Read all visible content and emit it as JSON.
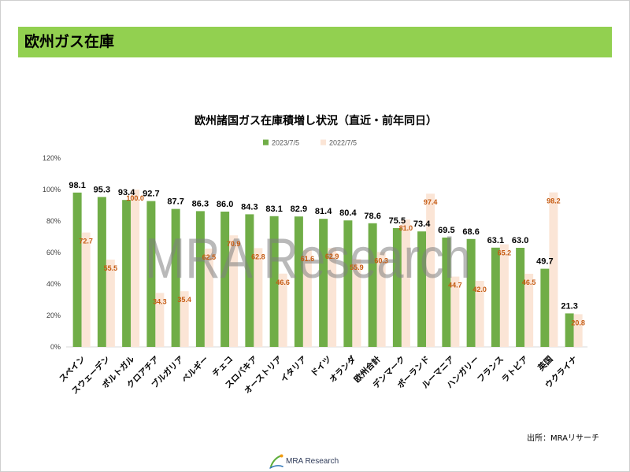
{
  "header": {
    "title": "欧州ガス在庫"
  },
  "chart_data": {
    "type": "bar",
    "title": "欧州諸国ガス在庫積増し状況（直近・前年同日）",
    "categories": [
      "スペイン",
      "スウェーデン",
      "ポルトガル",
      "クロアチア",
      "ブルガリア",
      "ベルギー",
      "チェコ",
      "スロバキア",
      "オーストリア",
      "イタリア",
      "ドイツ",
      "オランダ",
      "欧州合計",
      "デンマーク",
      "ポーランド",
      "ルーマニア",
      "ハンガリー",
      "フランス",
      "ラトビア",
      "英国",
      "ウクライナ"
    ],
    "series": [
      {
        "name": "2023/7/5",
        "color": "#70AD47",
        "label_color": "#000000",
        "values": [
          98.1,
          95.3,
          93.4,
          92.7,
          87.7,
          86.3,
          86.0,
          84.3,
          83.1,
          82.9,
          81.4,
          80.4,
          78.6,
          75.5,
          73.4,
          69.5,
          68.6,
          63.1,
          63.0,
          49.7,
          21.3
        ]
      },
      {
        "name": "2022/7/5",
        "color": "#FBE5D6",
        "label_color": "#C55A11",
        "values": [
          72.7,
          55.5,
          100.0,
          34.3,
          35.4,
          62.5,
          70.9,
          62.8,
          46.6,
          61.6,
          62.9,
          55.9,
          60.3,
          81.0,
          97.4,
          44.7,
          42.0,
          65.2,
          46.5,
          98.2,
          20.8
        ]
      }
    ],
    "ylim": [
      0,
      120
    ],
    "yticks": [
      {
        "value": 0,
        "label": "0%"
      },
      {
        "value": 20,
        "label": "20%"
      },
      {
        "value": 40,
        "label": "40%"
      },
      {
        "value": 60,
        "label": "60%"
      },
      {
        "value": 80,
        "label": "80%"
      },
      {
        "value": 100,
        "label": "100%"
      },
      {
        "value": 120,
        "label": "120%"
      }
    ],
    "grid": false,
    "legend_position": "top"
  },
  "watermark": {
    "text": "MRA Research",
    "color": "#7F7F7F"
  },
  "footer": {
    "source": "出所：MRAリサーチ",
    "logo_text": "MRA Research",
    "logo_icon": "swoosh-icon"
  },
  "colors": {
    "header_bar": "#92D050"
  }
}
